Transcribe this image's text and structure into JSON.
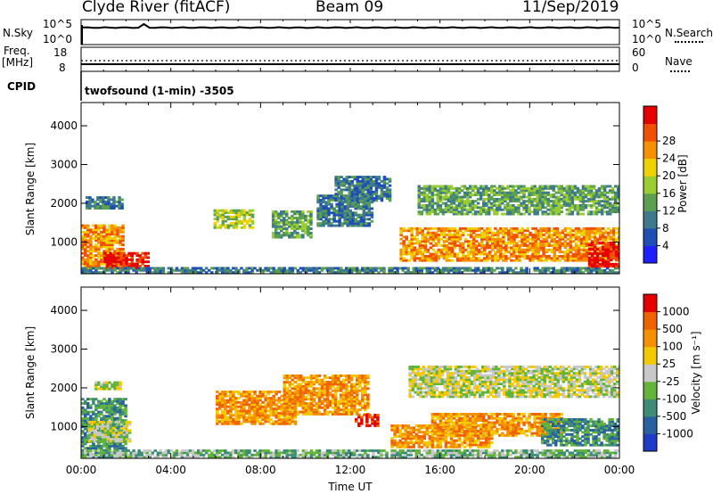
{
  "header": {
    "station": "Clyde River (fitACF)",
    "beam": "Beam 09",
    "date": "11/Sep/2019"
  },
  "left_labels": {
    "nsky": "N.Sky",
    "nsky_top": "10^5",
    "nsky_bottom": "10^0",
    "freq": "Freq.",
    "freq_unit": "[MHz]",
    "freq_top": "18",
    "freq_bottom": "8",
    "cpid": "CPID"
  },
  "right_labels": {
    "nsearch_top": "10^5",
    "nsearch_bottom": "10^0",
    "nsearch": "N.Search",
    "nave_top": "60",
    "nave_bottom": "0",
    "nave": "Nave"
  },
  "cpid_text": "twofsound (1-min) -3505",
  "chart_data": [
    {
      "type": "line",
      "panel": "noise",
      "x": [
        "00:00",
        "02:30",
        "02:50",
        "24:00"
      ],
      "series": [
        {
          "name": "N.Sky",
          "values": [
            3.4,
            4.3,
            4.1,
            3.4
          ]
        }
      ],
      "ylim": [
        0,
        5
      ]
    },
    {
      "type": "line",
      "panel": "frequency",
      "series": [
        {
          "name": "Freq.",
          "values": [
            11,
            11
          ]
        },
        {
          "name": "Nave",
          "values": [
            22,
            22
          ]
        }
      ],
      "xlim": [
        "00:00",
        "24:00"
      ]
    },
    {
      "type": "heatmap",
      "panel": "power",
      "ylabel": "Slant Range [km]",
      "xlabel": "",
      "yticks": [
        "1000",
        "2000",
        "3000",
        "4000"
      ],
      "ylim": [
        180,
        4600
      ],
      "colorbar": {
        "label": "Power [dB]",
        "ticks": [
          "4",
          "8",
          "12",
          "16",
          "20",
          "24",
          "28"
        ],
        "colors": [
          "#1e1eff",
          "#1e4fb4",
          "#3c7a8c",
          "#5aa050",
          "#9acd32",
          "#f0d200",
          "#f59000",
          "#f05000",
          "#e60000"
        ]
      },
      "regions": [
        {
          "x0": 0.0,
          "x1": 1.9,
          "y0": 300,
          "y1": 1450,
          "level": 6
        },
        {
          "x0": 0.2,
          "x1": 1.8,
          "y0": 1850,
          "y1": 2150,
          "level": 2
        },
        {
          "x0": 1.0,
          "x1": 3.0,
          "y0": 300,
          "y1": 700,
          "level": 8
        },
        {
          "x0": 5.9,
          "x1": 7.7,
          "y0": 1350,
          "y1": 1800,
          "level": 4
        },
        {
          "x0": 8.5,
          "x1": 10.2,
          "y0": 1100,
          "y1": 1800,
          "level": 3
        },
        {
          "x0": 10.5,
          "x1": 13.0,
          "y0": 1400,
          "y1": 2200,
          "level": 2
        },
        {
          "x0": 11.3,
          "x1": 13.7,
          "y0": 2050,
          "y1": 2700,
          "level": 2
        },
        {
          "x0": 14.2,
          "x1": 24.0,
          "y0": 500,
          "y1": 1350,
          "level": 6
        },
        {
          "x0": 15.0,
          "x1": 24.0,
          "y0": 1700,
          "y1": 2450,
          "level": 3
        },
        {
          "x0": 0.0,
          "x1": 24.0,
          "y0": 190,
          "y1": 330,
          "level": 2
        },
        {
          "x0": 22.6,
          "x1": 24.0,
          "y0": 350,
          "y1": 1000,
          "level": 8
        }
      ]
    },
    {
      "type": "heatmap",
      "panel": "velocity",
      "ylabel": "Slant Range [km]",
      "xlabel": "Time UT",
      "xticks": [
        "00:00",
        "04:00",
        "08:00",
        "12:00",
        "16:00",
        "20:00",
        "00:00"
      ],
      "yticks": [
        "1000",
        "2000",
        "3000",
        "4000"
      ],
      "ylim": [
        180,
        4600
      ],
      "colorbar": {
        "label": "Velocity [m s⁻¹]",
        "ticks": [
          "1000",
          "500",
          "100",
          "25",
          "-25",
          "-100",
          "-500",
          "-1000"
        ],
        "colors": [
          "#1e3cc8",
          "#2860a0",
          "#3c8c78",
          "#64b43c",
          "#c8c8c8",
          "#f5c800",
          "#f59000",
          "#f06400",
          "#e60000"
        ]
      },
      "regions": [
        {
          "x0": 0.0,
          "x1": 2.0,
          "y0": 200,
          "y1": 1700,
          "level": 2
        },
        {
          "x0": 0.3,
          "x1": 2.2,
          "y0": 600,
          "y1": 1150,
          "level": 4
        },
        {
          "x0": 0.6,
          "x1": 1.8,
          "y0": 1950,
          "y1": 2150,
          "level": 4
        },
        {
          "x0": 6.0,
          "x1": 9.5,
          "y0": 1050,
          "y1": 1900,
          "level": 6
        },
        {
          "x0": 9.0,
          "x1": 12.8,
          "y0": 1300,
          "y1": 2300,
          "level": 6
        },
        {
          "x0": 12.2,
          "x1": 13.2,
          "y0": 1000,
          "y1": 1300,
          "level": 8
        },
        {
          "x0": 13.8,
          "x1": 18.3,
          "y0": 450,
          "y1": 1050,
          "level": 6
        },
        {
          "x0": 15.6,
          "x1": 21.4,
          "y0": 750,
          "y1": 1350,
          "level": 6
        },
        {
          "x0": 14.6,
          "x1": 24.0,
          "y0": 1750,
          "y1": 2550,
          "level": 4
        },
        {
          "x0": 20.5,
          "x1": 24.0,
          "y0": 500,
          "y1": 1200,
          "level": 2
        },
        {
          "x0": 0.0,
          "x1": 24.0,
          "y0": 190,
          "y1": 360,
          "level": 3
        }
      ]
    }
  ]
}
